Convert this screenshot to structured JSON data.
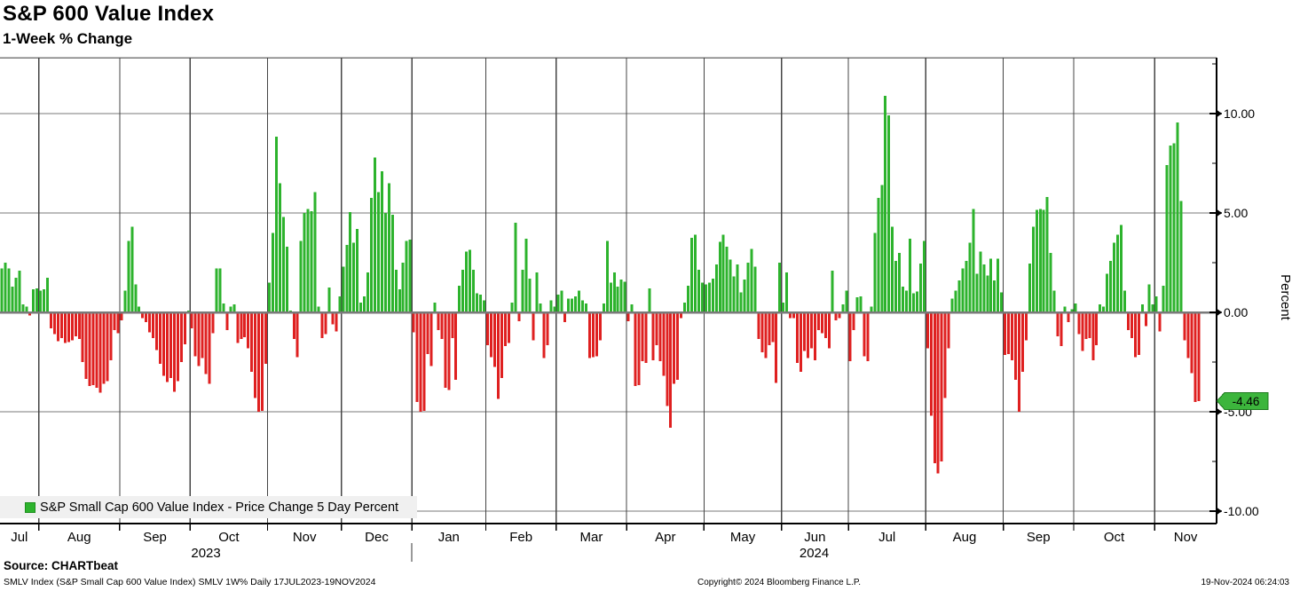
{
  "header": {
    "title": "S&P 600 Value Index",
    "subtitle": "1-Week % Change"
  },
  "legend": {
    "label": "S&P Small Cap 600 Value Index - Price Change 5 Day Percent",
    "swatch_color": "#2db32d"
  },
  "footer": {
    "source": "Source: CHARTbeat",
    "detail": "SMLV Index (S&P Small Cap 600 Value Index) SMLV 1W%  Daily 17JUL2023-19NOV2024",
    "copyright": "Copyright© 2024 Bloomberg Finance L.P.",
    "timestamp": "19-Nov-2024 06:24:03"
  },
  "chart_data": {
    "type": "bar",
    "title": "S&P 600 Value Index",
    "subtitle": "1-Week % Change",
    "series_name": "S&P Small Cap 600 Value Index - Price Change 5 Day Percent",
    "xlabel": "",
    "ylabel": "Percent",
    "ylim": [
      -10.65,
      12.8
    ],
    "grid": true,
    "legend_position": "bottom-left",
    "yticks": [
      {
        "value": 10,
        "label": "10.00"
      },
      {
        "value": 5,
        "label": "5.00"
      },
      {
        "value": 0,
        "label": "0.00"
      },
      {
        "value": -5,
        "label": "-5.00"
      },
      {
        "value": -10,
        "label": "-10.00"
      }
    ],
    "yticks_minor": [
      12.5,
      7.5,
      2.5,
      -2.5,
      -7.5
    ],
    "last_value_badge": {
      "label": "-4.46",
      "value": -4.46,
      "color": "#3cb53c"
    },
    "colors": {
      "positive": "#2db32d",
      "negative": "#df2020",
      "grid_h": "#7a7a7a",
      "grid_v": "#444444",
      "zero_line": "#7a7a7a",
      "axis": "#000000",
      "legend_bg": "#f0f0f0"
    },
    "year_labels": [
      "2023",
      "2024"
    ],
    "months": [
      {
        "label": "Jul",
        "year": "2023",
        "values": [
          2.2,
          2.5,
          2.2,
          1.3,
          1.75,
          2.1,
          0.4,
          0.3,
          -0.15,
          1.15,
          1.2
        ]
      },
      {
        "label": "Aug",
        "year": "2023",
        "values": [
          1.1,
          1.15,
          1.75,
          -0.8,
          -1.1,
          -1.45,
          -1.3,
          -1.55,
          -1.5,
          -1.4,
          -1.2,
          -1.35,
          -2.5,
          -3.35,
          -3.7,
          -3.65,
          -3.8,
          -4.05,
          -3.6,
          -3.45,
          -2.4,
          -0.9,
          -1.05
        ]
      },
      {
        "label": "Sep",
        "year": "2023",
        "values": [
          -0.4,
          1.1,
          3.6,
          4.3,
          1.4,
          0.3,
          -0.3,
          -0.5,
          -1.0,
          -1.3,
          -1.9,
          -2.6,
          -3.2,
          -3.5,
          -3.3,
          -4.0,
          -3.45,
          -2.5,
          -1.6,
          0.1
        ]
      },
      {
        "label": "Oct",
        "year": "2023",
        "values": [
          -0.8,
          -2.2,
          -2.7,
          -2.3,
          -3.1,
          -3.6,
          -1.05,
          2.2,
          2.2,
          0.45,
          -0.9,
          0.3,
          0.4,
          -1.55,
          -1.35,
          -1.25,
          -1.8,
          -3.0,
          -4.3,
          -5.0,
          -4.95,
          -2.6
        ]
      },
      {
        "label": "Nov",
        "year": "2023",
        "values": [
          1.5,
          4.0,
          8.85,
          6.5,
          4.8,
          3.3,
          0.1,
          -1.35,
          -2.25,
          3.6,
          5.0,
          5.2,
          5.1,
          6.05,
          0.3,
          -1.3,
          -1.1,
          1.25,
          -0.6,
          -0.95,
          0.8
        ]
      },
      {
        "label": "Dec",
        "year": "2023",
        "values": [
          2.3,
          3.4,
          5.05,
          3.5,
          4.2,
          0.5,
          0.8,
          2.0,
          5.75,
          7.8,
          6.05,
          7.1,
          5.0,
          6.5,
          4.9,
          2.15,
          1.15,
          2.5,
          3.6,
          3.65
        ]
      },
      {
        "label": "Jan",
        "year": "2024",
        "values": [
          -1.0,
          -4.5,
          -5.0,
          -4.95,
          -2.1,
          -2.7,
          0.5,
          -0.9,
          -1.35,
          -3.8,
          -3.9,
          -1.3,
          -3.4,
          1.35,
          2.15,
          3.05,
          3.15,
          2.15,
          0.95,
          0.9,
          0.6
        ]
      },
      {
        "label": "Feb",
        "year": "2024",
        "values": [
          -1.65,
          -2.25,
          -2.75,
          -4.35,
          -3.3,
          -1.7,
          -1.55,
          0.5,
          4.5,
          -0.45,
          2.15,
          3.7,
          1.7,
          -1.4,
          2.0,
          0.45,
          -2.3,
          -1.65,
          0.6,
          0.3
        ]
      },
      {
        "label": "Mar",
        "year": "2024",
        "values": [
          0.9,
          1.1,
          -0.5,
          0.7,
          0.7,
          0.8,
          1.1,
          0.6,
          0.45,
          -2.3,
          -2.25,
          -2.2,
          -1.4,
          0.45,
          3.6,
          1.5,
          2.0,
          1.3,
          1.65,
          1.55
        ]
      },
      {
        "label": "Apr",
        "year": "2024",
        "values": [
          -0.45,
          0.4,
          -3.7,
          -3.65,
          -2.45,
          -2.55,
          1.2,
          -2.4,
          -1.65,
          -2.45,
          -3.2,
          -4.7,
          -5.8,
          -3.6,
          -3.4,
          -0.3,
          0.5,
          1.35,
          3.75,
          3.9,
          2.15,
          1.5
        ]
      },
      {
        "label": "May",
        "year": "2024",
        "values": [
          1.4,
          1.5,
          1.7,
          2.4,
          3.55,
          3.9,
          3.3,
          2.65,
          1.8,
          2.4,
          1.0,
          1.65,
          2.5,
          3.2,
          2.3,
          -1.35,
          -2.0,
          -2.3,
          -1.65,
          -1.5,
          -3.55,
          2.5
        ]
      },
      {
        "label": "Jun",
        "year": "2024",
        "values": [
          0.5,
          2.0,
          -0.3,
          -0.3,
          -2.55,
          -3.0,
          -1.95,
          -2.3,
          -1.8,
          -2.4,
          -0.9,
          -1.05,
          -1.3,
          -1.8,
          2.1,
          -0.4,
          -0.3,
          0.4,
          1.1
        ]
      },
      {
        "label": "Jul",
        "year": "2024",
        "values": [
          -2.45,
          -0.9,
          0.75,
          0.8,
          -2.2,
          -2.45,
          0.3,
          4.0,
          5.75,
          6.4,
          10.9,
          9.9,
          4.3,
          2.6,
          3.0,
          1.3,
          1.1,
          3.7,
          0.97,
          1.05,
          2.45,
          3.6
        ]
      },
      {
        "label": "Aug",
        "year": "2024",
        "values": [
          -1.8,
          -5.2,
          -7.6,
          -8.1,
          -7.5,
          -4.3,
          -1.8,
          0.7,
          1.1,
          1.6,
          2.2,
          2.6,
          3.5,
          5.2,
          1.95,
          3.05,
          2.4,
          1.85,
          2.7,
          1.6,
          2.7,
          1.0
        ]
      },
      {
        "label": "Sep",
        "year": "2024",
        "values": [
          -2.15,
          -2.1,
          -2.4,
          -3.4,
          -5.0,
          -3.0,
          -1.4,
          2.45,
          4.3,
          5.15,
          5.2,
          5.15,
          5.8,
          3.0,
          1.1,
          -1.2,
          -1.7,
          0.3,
          -0.5,
          0.15
        ]
      },
      {
        "label": "Oct",
        "year": "2024",
        "values": [
          0.45,
          -1.1,
          -1.95,
          -1.35,
          -1.3,
          -2.4,
          -1.65,
          0.4,
          0.3,
          1.95,
          2.6,
          3.5,
          3.9,
          4.4,
          1.1,
          -0.9,
          -1.3,
          -2.25,
          -2.15,
          0.4,
          -0.7,
          1.4,
          0.4
        ]
      },
      {
        "label": "Nov",
        "year": "2024",
        "values": [
          0.8,
          -0.97,
          1.35,
          7.4,
          8.4,
          8.5,
          9.55,
          5.6,
          -1.4,
          -2.3,
          -3.05,
          -4.5,
          -4.46
        ]
      }
    ]
  }
}
